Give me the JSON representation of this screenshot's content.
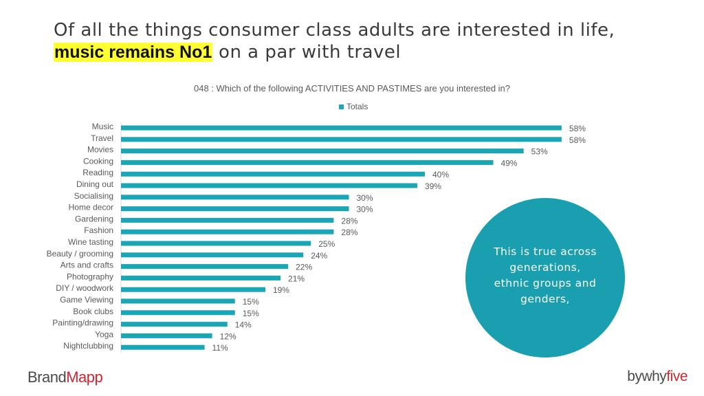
{
  "headline": {
    "highlight": "music remains No1",
    "line1": "Of all the things consumer class adults are interested in life,",
    "line2_rest": " on a par with travel"
  },
  "callout": {
    "text": "This is true across generations, ethnic groups and genders,"
  },
  "footer": {
    "brand_left_a": "Brand",
    "brand_left_b": "Mapp",
    "brand_right_a": "bywhy",
    "brand_right_b": "five"
  },
  "colors": {
    "bar": "#1aa6b7",
    "callout": "#1a9fb0",
    "highlight": "#ffff33",
    "brand_red": "#d22630"
  },
  "chart_data": {
    "type": "bar",
    "orientation": "horizontal",
    "title": "048 :  Which of the following ACTIVITIES AND PASTIMES are you interested in?",
    "legend_position": "top",
    "grid": false,
    "xlim": [
      0,
      60
    ],
    "categories": [
      "Music",
      "Travel",
      "Movies",
      "Cooking",
      "Reading",
      "Dining out",
      "Socialising",
      "Home decor",
      "Gardening",
      "Fashion",
      "Wine tasting",
      "Beauty / grooming",
      "Arts and crafts",
      "Photography",
      "DIY  / woodwork",
      "Game Viewing",
      "Book clubs",
      "Painting/drawing",
      "Yoga",
      "Nightclubbing"
    ],
    "series": [
      {
        "name": "Totals",
        "values": [
          58,
          58,
          53,
          49,
          40,
          39,
          30,
          30,
          28,
          28,
          25,
          24,
          22,
          21,
          19,
          15,
          15,
          14,
          12,
          11
        ],
        "labels": [
          "58%",
          "58%",
          "53%",
          "49%",
          "40%",
          "39%",
          "30%",
          "30%",
          "28%",
          "28%",
          "25%",
          "24%",
          "22%",
          "21%",
          "19%",
          "15%",
          "15%",
          "14%",
          "12%",
          "11%"
        ]
      }
    ]
  }
}
